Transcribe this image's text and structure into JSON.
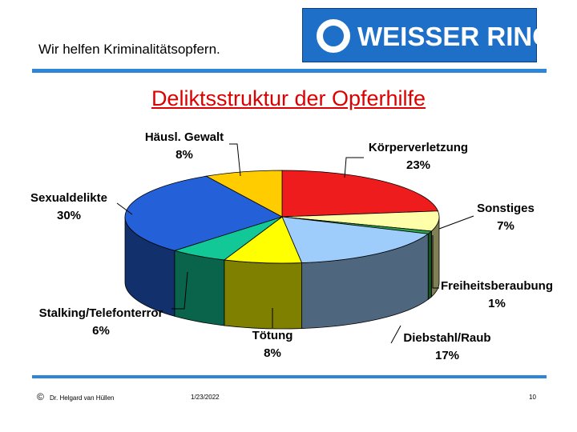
{
  "header": {
    "slogan": "Wir helfen Kriminalitätsopfern.",
    "logo_text": "WEISSER RING",
    "logo_bg": "#1e6fc8"
  },
  "chart_data": {
    "type": "pie",
    "title": "Deliktsstruktur der Opferhilfe",
    "slices": [
      {
        "label": "Körperverletzung",
        "value": 23,
        "value_text": "23%",
        "color": "#ee1c1c"
      },
      {
        "label": "Sonstiges",
        "value": 7,
        "value_text": "7%",
        "color": "#ffffaa"
      },
      {
        "label": "Freiheitsberaubung",
        "value": 1,
        "value_text": "1%",
        "color": "#2ba44a"
      },
      {
        "label": "Diebstahl/Raub",
        "value": 17,
        "value_text": "17%",
        "color": "#9ecdfc"
      },
      {
        "label": "Tötung",
        "value": 8,
        "value_text": "8%",
        "color": "#ffff00"
      },
      {
        "label": "Stalking/Telefonterror",
        "value": 6,
        "value_text": "6%",
        "color": "#11c896"
      },
      {
        "label": "Sexualdelikte",
        "value": 30,
        "value_text": "30%",
        "color": "#2460d8"
      },
      {
        "label": "Häusl. Gewalt",
        "value": 8,
        "value_text": "8%",
        "color": "#ffcc00"
      }
    ]
  },
  "footer": {
    "copyright_symbol": "©",
    "author": "Dr. Helgard van Hüllen",
    "date": "1/23/2022",
    "page": "10"
  }
}
